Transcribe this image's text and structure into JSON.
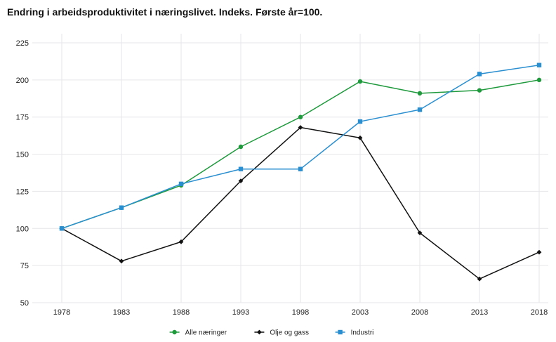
{
  "chart_data": {
    "type": "line",
    "title": "Endring i arbeidsproduktivitet i næringslivet. Indeks. Første år=100.",
    "xlabel": "",
    "ylabel": "",
    "categories": [
      "1978",
      "1983",
      "1988",
      "1993",
      "1998",
      "2003",
      "2008",
      "2013",
      "2018"
    ],
    "ylim": [
      50,
      225
    ],
    "yticks": [
      "50",
      "75",
      "100",
      "125",
      "150",
      "175",
      "200",
      "225"
    ],
    "grid": true,
    "legend_position": "bottom",
    "series": [
      {
        "name": "Alle næringer",
        "color": "#1e9a3c",
        "marker": "circle",
        "values": [
          100,
          114,
          129,
          155,
          175,
          199,
          191,
          193,
          200
        ]
      },
      {
        "name": "Olje og gass",
        "color": "#111111",
        "marker": "diamond",
        "values": [
          100,
          78,
          91,
          132,
          168,
          161,
          97,
          66,
          84
        ]
      },
      {
        "name": "Industri",
        "color": "#2a8fd0",
        "marker": "square",
        "values": [
          100,
          114,
          130,
          140,
          140,
          172,
          180,
          204,
          210
        ]
      }
    ]
  }
}
